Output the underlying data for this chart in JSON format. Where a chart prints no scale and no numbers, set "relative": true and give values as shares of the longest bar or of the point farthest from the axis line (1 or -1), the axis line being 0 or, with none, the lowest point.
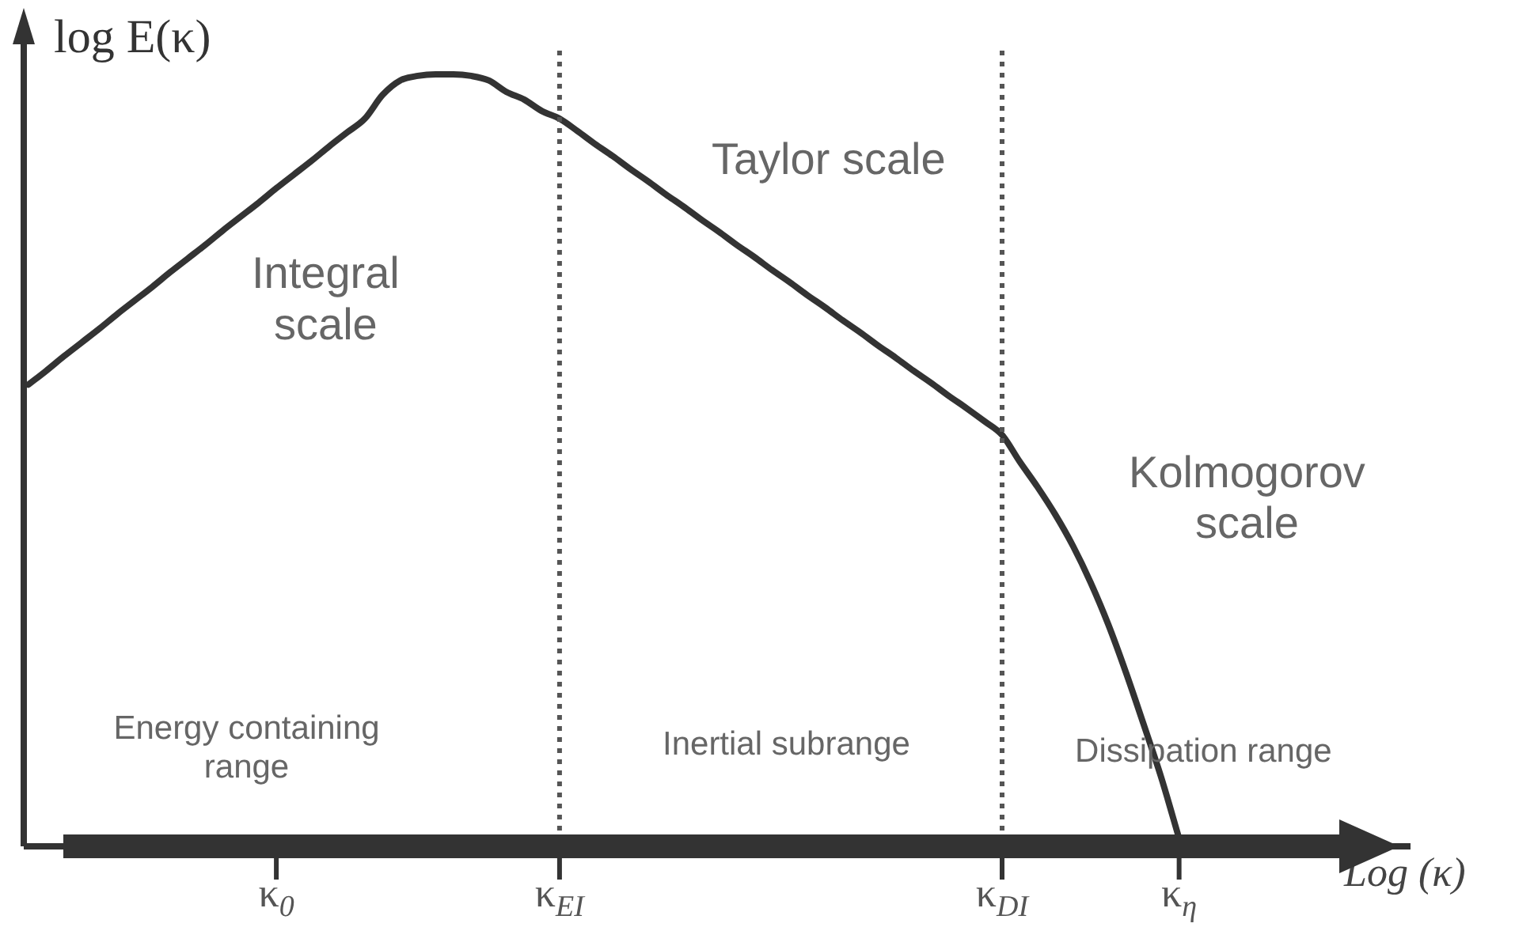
{
  "chart_data": {
    "type": "line",
    "relative": true,
    "ylabel": "log E(κ)",
    "xlabel": "Log (κ)",
    "categories": [
      null,
      null,
      null,
      null,
      null,
      null,
      null,
      null,
      null,
      null,
      null,
      null,
      null,
      null,
      "κ$_{0}$",
      null,
      null,
      null,
      null,
      null,
      null,
      null,
      null,
      null,
      null,
      null,
      null,
      null,
      null,
      null,
      "κ$_{EI}$",
      null,
      null,
      null,
      null,
      null,
      null,
      null,
      null,
      null,
      null,
      null,
      null,
      null,
      null,
      null,
      null,
      null,
      null,
      null,
      null,
      null,
      null,
      null,
      null,
      "κ$_{DI}$",
      null,
      null,
      null,
      null,
      null,
      null,
      null,
      null,
      null,
      "κ$_{η}$",
      null,
      null,
      null,
      null,
      null,
      null,
      null,
      null,
      null,
      null,
      null,
      null
    ],
    "series": [
      {
        "color": "#333333",
        "values": [
          0.594,
          0.612,
          0.631,
          0.649,
          0.667,
          0.686,
          0.704,
          0.722,
          0.741,
          0.759,
          0.777,
          0.796,
          0.814,
          0.832,
          0.851,
          0.869,
          0.887,
          0.906,
          0.924,
          0.942,
          0.973,
          0.992,
          0.998,
          1,
          1,
          0.998,
          0.992,
          0.977,
          0.967,
          0.952,
          0.942,
          0.926,
          0.909,
          0.893,
          0.876,
          0.86,
          0.843,
          0.827,
          0.81,
          0.794,
          0.777,
          0.761,
          0.744,
          0.728,
          0.711,
          0.695,
          0.678,
          0.662,
          0.645,
          0.629,
          0.612,
          0.596,
          0.579,
          0.563,
          0.546,
          0.528,
          0.493,
          0.46,
          0.424,
          0.383,
          0.335,
          0.28,
          0.217,
          0.149,
          0.079,
          0,
          null,
          null,
          null,
          null,
          null,
          null,
          null,
          null,
          null,
          null,
          null,
          null
        ]
      }
    ],
    "ref_lines": [
      {
        "axis": "x",
        "value": "κ$_{EI}$",
        "line_style": "dotted"
      },
      {
        "axis": "x",
        "value": "κ$_{DI}$",
        "line_style": "dotted"
      }
    ],
    "annotations": [
      "Integral scale",
      "Taylor scale",
      "Kolmogorov scale",
      "Energy containing range",
      "Inertial subrange",
      "Dissipation range"
    ],
    "legend": false,
    "grid": false,
    "marker": "none",
    "line_style": "solid"
  }
}
